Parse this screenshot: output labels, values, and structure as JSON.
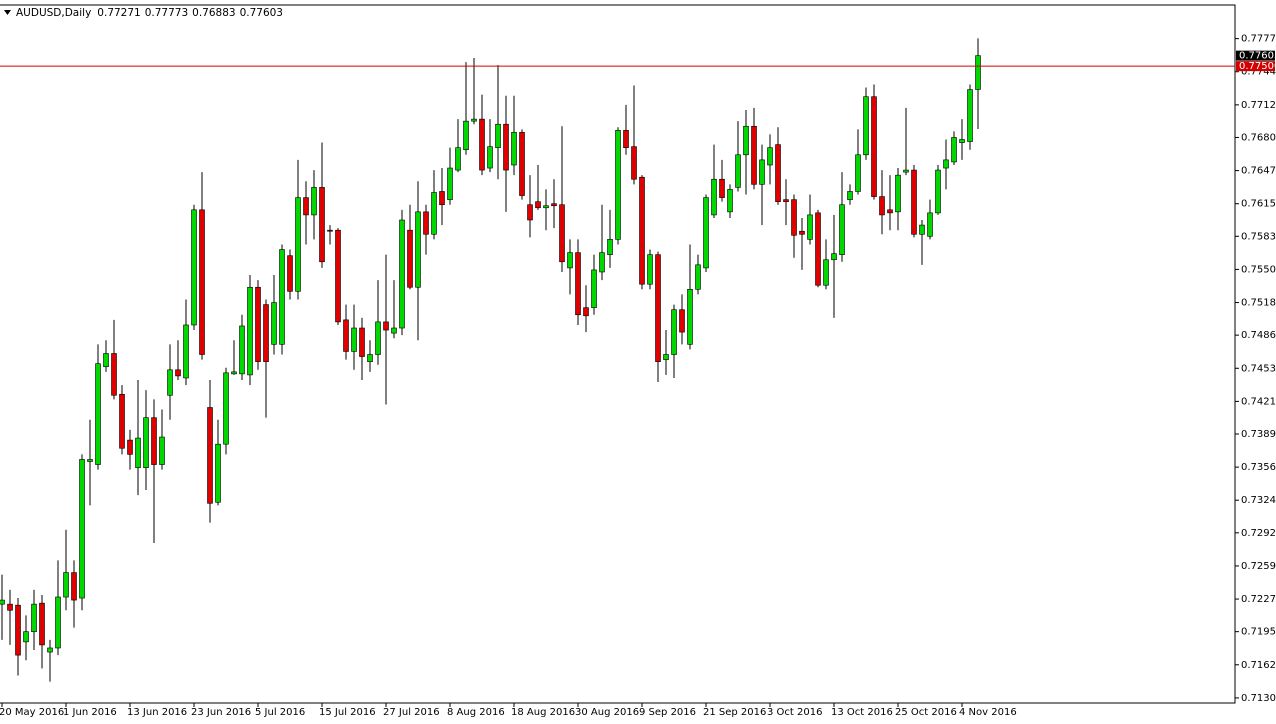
{
  "chart_data": {
    "type": "candlestick",
    "title": "AUDUSD,Daily",
    "categories": [
      "20 May 2016",
      null,
      null,
      null,
      null,
      null,
      null,
      null,
      "1 Jun 2016",
      null,
      null,
      null,
      null,
      null,
      null,
      null,
      "13 Jun 2016",
      null,
      null,
      null,
      null,
      null,
      null,
      null,
      "23 Jun 2016",
      null,
      null,
      null,
      null,
      null,
      null,
      null,
      "5 Jul 2016",
      null,
      null,
      null,
      null,
      null,
      null,
      null,
      "15 Jul 2016",
      null,
      null,
      null,
      null,
      null,
      null,
      null,
      "27 Jul 2016",
      null,
      null,
      null,
      null,
      null,
      null,
      null,
      "8 Aug 2016",
      null,
      null,
      null,
      null,
      null,
      null,
      null,
      "18 Aug 2016",
      null,
      null,
      null,
      null,
      null,
      null,
      null,
      "30 Aug 2016",
      null,
      null,
      null,
      null,
      null,
      null,
      null,
      "9 Sep 2016",
      null,
      null,
      null,
      null,
      null,
      null,
      null,
      "21 Sep 2016",
      null,
      null,
      null,
      null,
      null,
      null,
      null,
      "3 Oct 2016",
      null,
      null,
      null,
      null,
      null,
      null,
      null,
      "13 Oct 2016",
      null,
      null,
      null,
      null,
      null,
      null,
      null,
      "25 Oct 2016",
      null,
      null,
      null,
      null,
      null,
      null,
      null,
      "4 Nov 2016",
      null,
      null
    ],
    "open": [
      0.7222,
      0.7222,
      0.7221,
      0.7185,
      0.7195,
      0.7223,
      0.7175,
      0.7179,
      0.7229,
      0.7253,
      0.7228,
      0.7362,
      0.7359,
      0.7455,
      0.7468,
      0.7428,
      0.7383,
      0.7356,
      0.7356,
      0.7405,
      0.7359,
      0.7427,
      0.7452,
      0.7444,
      0.7496,
      0.7609,
      0.7415,
      0.7322,
      0.7379,
      0.7448,
      0.7448,
      0.7447,
      0.7533,
      0.7516,
      0.7477,
      0.7477,
      0.7564,
      0.7529,
      0.7621,
      0.7604,
      0.7631,
      0.7589,
      0.7589,
      0.7501,
      0.747,
      0.7493,
      0.746,
      0.7467,
      0.7499,
      0.7488,
      0.7493,
      0.7589,
      0.7533,
      0.7607,
      0.7585,
      0.7627,
      0.7619,
      0.7648,
      0.7668,
      0.7696,
      0.7698,
      0.765,
      0.767,
      0.7693,
      0.7653,
      0.7685,
      0.7614,
      0.7617,
      0.7611,
      0.7615,
      0.7614,
      0.7552,
      0.7567,
      0.7513,
      0.7513,
      0.7548,
      0.7565,
      0.758,
      0.7687,
      0.7671,
      0.7641,
      0.7536,
      0.7565,
      0.7462,
      0.7467,
      0.7511,
      0.7477,
      0.7531,
      0.7552,
      0.7604,
      0.7639,
      0.7607,
      0.7631,
      0.7663,
      0.7691,
      0.7634,
      0.7653,
      0.7673,
      0.7619,
      0.7619,
      0.7588,
      0.758,
      0.7606,
      0.7535,
      0.756,
      0.7565,
      0.7619,
      0.7627,
      0.7663,
      0.772,
      0.7622,
      0.7609,
      0.7607,
      0.7646,
      0.7648,
      0.7585,
      0.7583,
      0.7606,
      0.765,
      0.7656,
      0.7675,
      0.7676,
      0.77271
    ],
    "high": [
      0.7251,
      0.7236,
      0.7228,
      0.7211,
      0.7236,
      0.7231,
      0.7187,
      0.7265,
      0.7295,
      0.7265,
      0.7369,
      0.7403,
      0.7477,
      0.7481,
      0.7501,
      0.7437,
      0.7393,
      0.7442,
      0.7432,
      0.7423,
      0.7413,
      0.7477,
      0.7481,
      0.7521,
      0.7614,
      0.7646,
      0.7442,
      0.7403,
      0.7454,
      0.7481,
      0.7506,
      0.7545,
      0.754,
      0.7521,
      0.7545,
      0.7575,
      0.757,
      0.7658,
      0.7637,
      0.7648,
      0.7675,
      0.7594,
      0.7591,
      0.7516,
      0.7516,
      0.7503,
      0.7481,
      0.754,
      0.7565,
      0.754,
      0.7609,
      0.7614,
      0.7637,
      0.7614,
      0.7648,
      0.765,
      0.767,
      0.7698,
      0.7754,
      0.7758,
      0.7722,
      0.7698,
      0.7751,
      0.7721,
      0.7721,
      0.7688,
      0.7643,
      0.7653,
      0.7629,
      0.7639,
      0.7691,
      0.758,
      0.758,
      0.7535,
      0.7565,
      0.7614,
      0.7609,
      0.769,
      0.7712,
      0.7731,
      0.7643,
      0.757,
      0.7568,
      0.7491,
      0.7516,
      0.7526,
      0.7575,
      0.7565,
      0.7624,
      0.7673,
      0.7658,
      0.7634,
      0.7696,
      0.7707,
      0.7709,
      0.7673,
      0.7683,
      0.769,
      0.7639,
      0.7624,
      0.7601,
      0.7624,
      0.7609,
      0.758,
      0.7604,
      0.7646,
      0.7634,
      0.7688,
      0.7729,
      0.7732,
      0.7648,
      0.7643,
      0.765,
      0.7709,
      0.7653,
      0.7599,
      0.7619,
      0.7653,
      0.7678,
      0.7686,
      0.7698,
      0.7732,
      0.77773
    ],
    "low": [
      0.7187,
      0.7182,
      0.7152,
      0.7167,
      0.7177,
      0.7159,
      0.7146,
      0.7172,
      0.7216,
      0.7199,
      0.7216,
      0.7319,
      0.7354,
      0.745,
      0.7423,
      0.7369,
      0.7354,
      0.7329,
      0.7334,
      0.7282,
      0.7354,
      0.7403,
      0.7442,
      0.7437,
      0.7491,
      0.7462,
      0.7302,
      0.7319,
      0.7369,
      0.7447,
      0.7442,
      0.7437,
      0.7452,
      0.7405,
      0.7467,
      0.7467,
      0.7521,
      0.7521,
      0.7575,
      0.758,
      0.7552,
      0.7575,
      0.7496,
      0.7462,
      0.7452,
      0.7442,
      0.745,
      0.7457,
      0.7418,
      0.7483,
      0.7486,
      0.7531,
      0.7481,
      0.7565,
      0.758,
      0.7594,
      0.7614,
      0.7646,
      0.7663,
      0.7693,
      0.7643,
      0.7646,
      0.7639,
      0.7607,
      0.7643,
      0.7619,
      0.7582,
      0.7609,
      0.7589,
      0.7591,
      0.7548,
      0.7526,
      0.7496,
      0.7489,
      0.7506,
      0.754,
      0.7552,
      0.7575,
      0.7663,
      0.7634,
      0.7531,
      0.7531,
      0.744,
      0.7447,
      0.7444,
      0.7477,
      0.7472,
      0.7526,
      0.7548,
      0.7601,
      0.7617,
      0.7601,
      0.7627,
      0.7624,
      0.7629,
      0.7594,
      0.7634,
      0.7614,
      0.7594,
      0.7562,
      0.755,
      0.7575,
      0.7533,
      0.7531,
      0.7503,
      0.7558,
      0.7614,
      0.7624,
      0.7658,
      0.7619,
      0.7585,
      0.7589,
      0.7589,
      0.7643,
      0.7582,
      0.7555,
      0.758,
      0.7604,
      0.7629,
      0.7653,
      0.7658,
      0.7668,
      0.76883
    ],
    "close": [
      0.7226,
      0.7216,
      0.7172,
      0.7195,
      0.7222,
      0.7182,
      0.7179,
      0.7229,
      0.7253,
      0.7226,
      0.7364,
      0.7364,
      0.7458,
      0.7468,
      0.7427,
      0.7375,
      0.7369,
      0.7385,
      0.7405,
      0.7359,
      0.7386,
      0.7452,
      0.7446,
      0.7496,
      0.7609,
      0.7467,
      0.7321,
      0.7379,
      0.7449,
      0.745,
      0.7495,
      0.7533,
      0.746,
      0.746,
      0.7518,
      0.757,
      0.7529,
      0.7621,
      0.7604,
      0.7631,
      0.7558,
      0.7588,
      0.7499,
      0.747,
      0.7493,
      0.7465,
      0.7467,
      0.7499,
      0.7491,
      0.7493,
      0.7599,
      0.7533,
      0.7607,
      0.7585,
      0.7626,
      0.7614,
      0.765,
      0.767,
      0.7696,
      0.7698,
      0.7648,
      0.7671,
      0.7693,
      0.7648,
      0.7685,
      0.7623,
      0.7599,
      0.7611,
      0.7613,
      0.7613,
      0.7558,
      0.7567,
      0.7506,
      0.7505,
      0.755,
      0.7567,
      0.758,
      0.7687,
      0.767,
      0.7639,
      0.7536,
      0.7565,
      0.746,
      0.7467,
      0.7511,
      0.7489,
      0.7531,
      0.7555,
      0.7621,
      0.7639,
      0.7621,
      0.7629,
      0.7663,
      0.7691,
      0.7634,
      0.7658,
      0.767,
      0.7617,
      0.7617,
      0.7584,
      0.7585,
      0.7604,
      0.7535,
      0.756,
      0.7566,
      0.7614,
      0.7627,
      0.7663,
      0.772,
      0.7622,
      0.7604,
      0.7606,
      0.7643,
      0.7648,
      0.7585,
      0.7594,
      0.7606,
      0.7648,
      0.7658,
      0.768,
      0.7678,
      0.7727,
      0.77603
    ],
    "up_color": "#00d800",
    "down_color": "#e00000",
    "ylim": [
      0.7125,
      0.781
    ],
    "yticks": [
      {
        "value": 0.7777,
        "label": "0.77770"
      },
      0.77445,
      {
        "value": 0.7712,
        "label": "0.77120"
      },
      {
        "value": 0.768,
        "label": "0.76800"
      },
      0.76475,
      {
        "value": 0.7615,
        "label": "0.76150"
      },
      {
        "value": 0.7583,
        "label": "0.75830"
      },
      0.75505,
      {
        "value": 0.7518,
        "label": "0.75180"
      },
      {
        "value": 0.7486,
        "label": "0.74860"
      },
      0.74535,
      {
        "value": 0.7421,
        "label": "0.74210"
      },
      {
        "value": 0.7389,
        "label": "0.73890"
      },
      0.73565,
      {
        "value": 0.7324,
        "label": "0.73240"
      },
      {
        "value": 0.7292,
        "label": "0.72920"
      },
      0.72595,
      {
        "value": 0.7227,
        "label": "0.72270"
      },
      {
        "value": 0.7195,
        "label": "0.71950"
      },
      0.71625,
      {
        "value": 0.713,
        "label": "0.71300"
      }
    ],
    "hline": {
      "value": 0.775,
      "label": "0.77500",
      "color": "#d40000"
    },
    "grid": false
  }
}
